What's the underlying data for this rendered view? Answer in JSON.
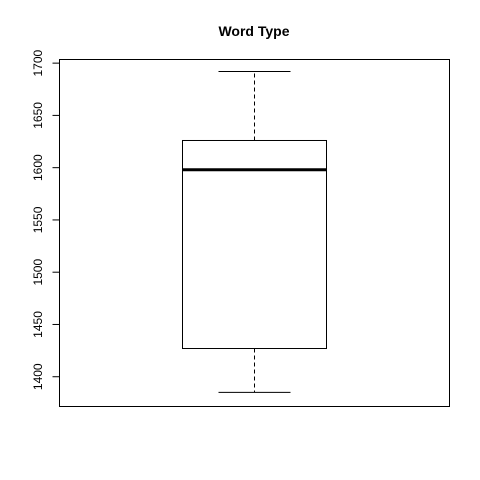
{
  "chart_data": {
    "type": "boxplot",
    "title": "Word Type",
    "xlabel": "",
    "ylabel": "",
    "ylim": [
      1372,
      1703
    ],
    "yticks": [
      1400,
      1450,
      1500,
      1550,
      1600,
      1650,
      1700
    ],
    "ytick_labels": [
      "1400",
      "1450",
      "1500",
      "1550",
      "1600",
      "1650",
      "1700"
    ],
    "grid": false,
    "box": {
      "whisker_low": 1385,
      "q1": 1427,
      "median": 1598,
      "q3": 1626,
      "whisker_high": 1692
    }
  }
}
